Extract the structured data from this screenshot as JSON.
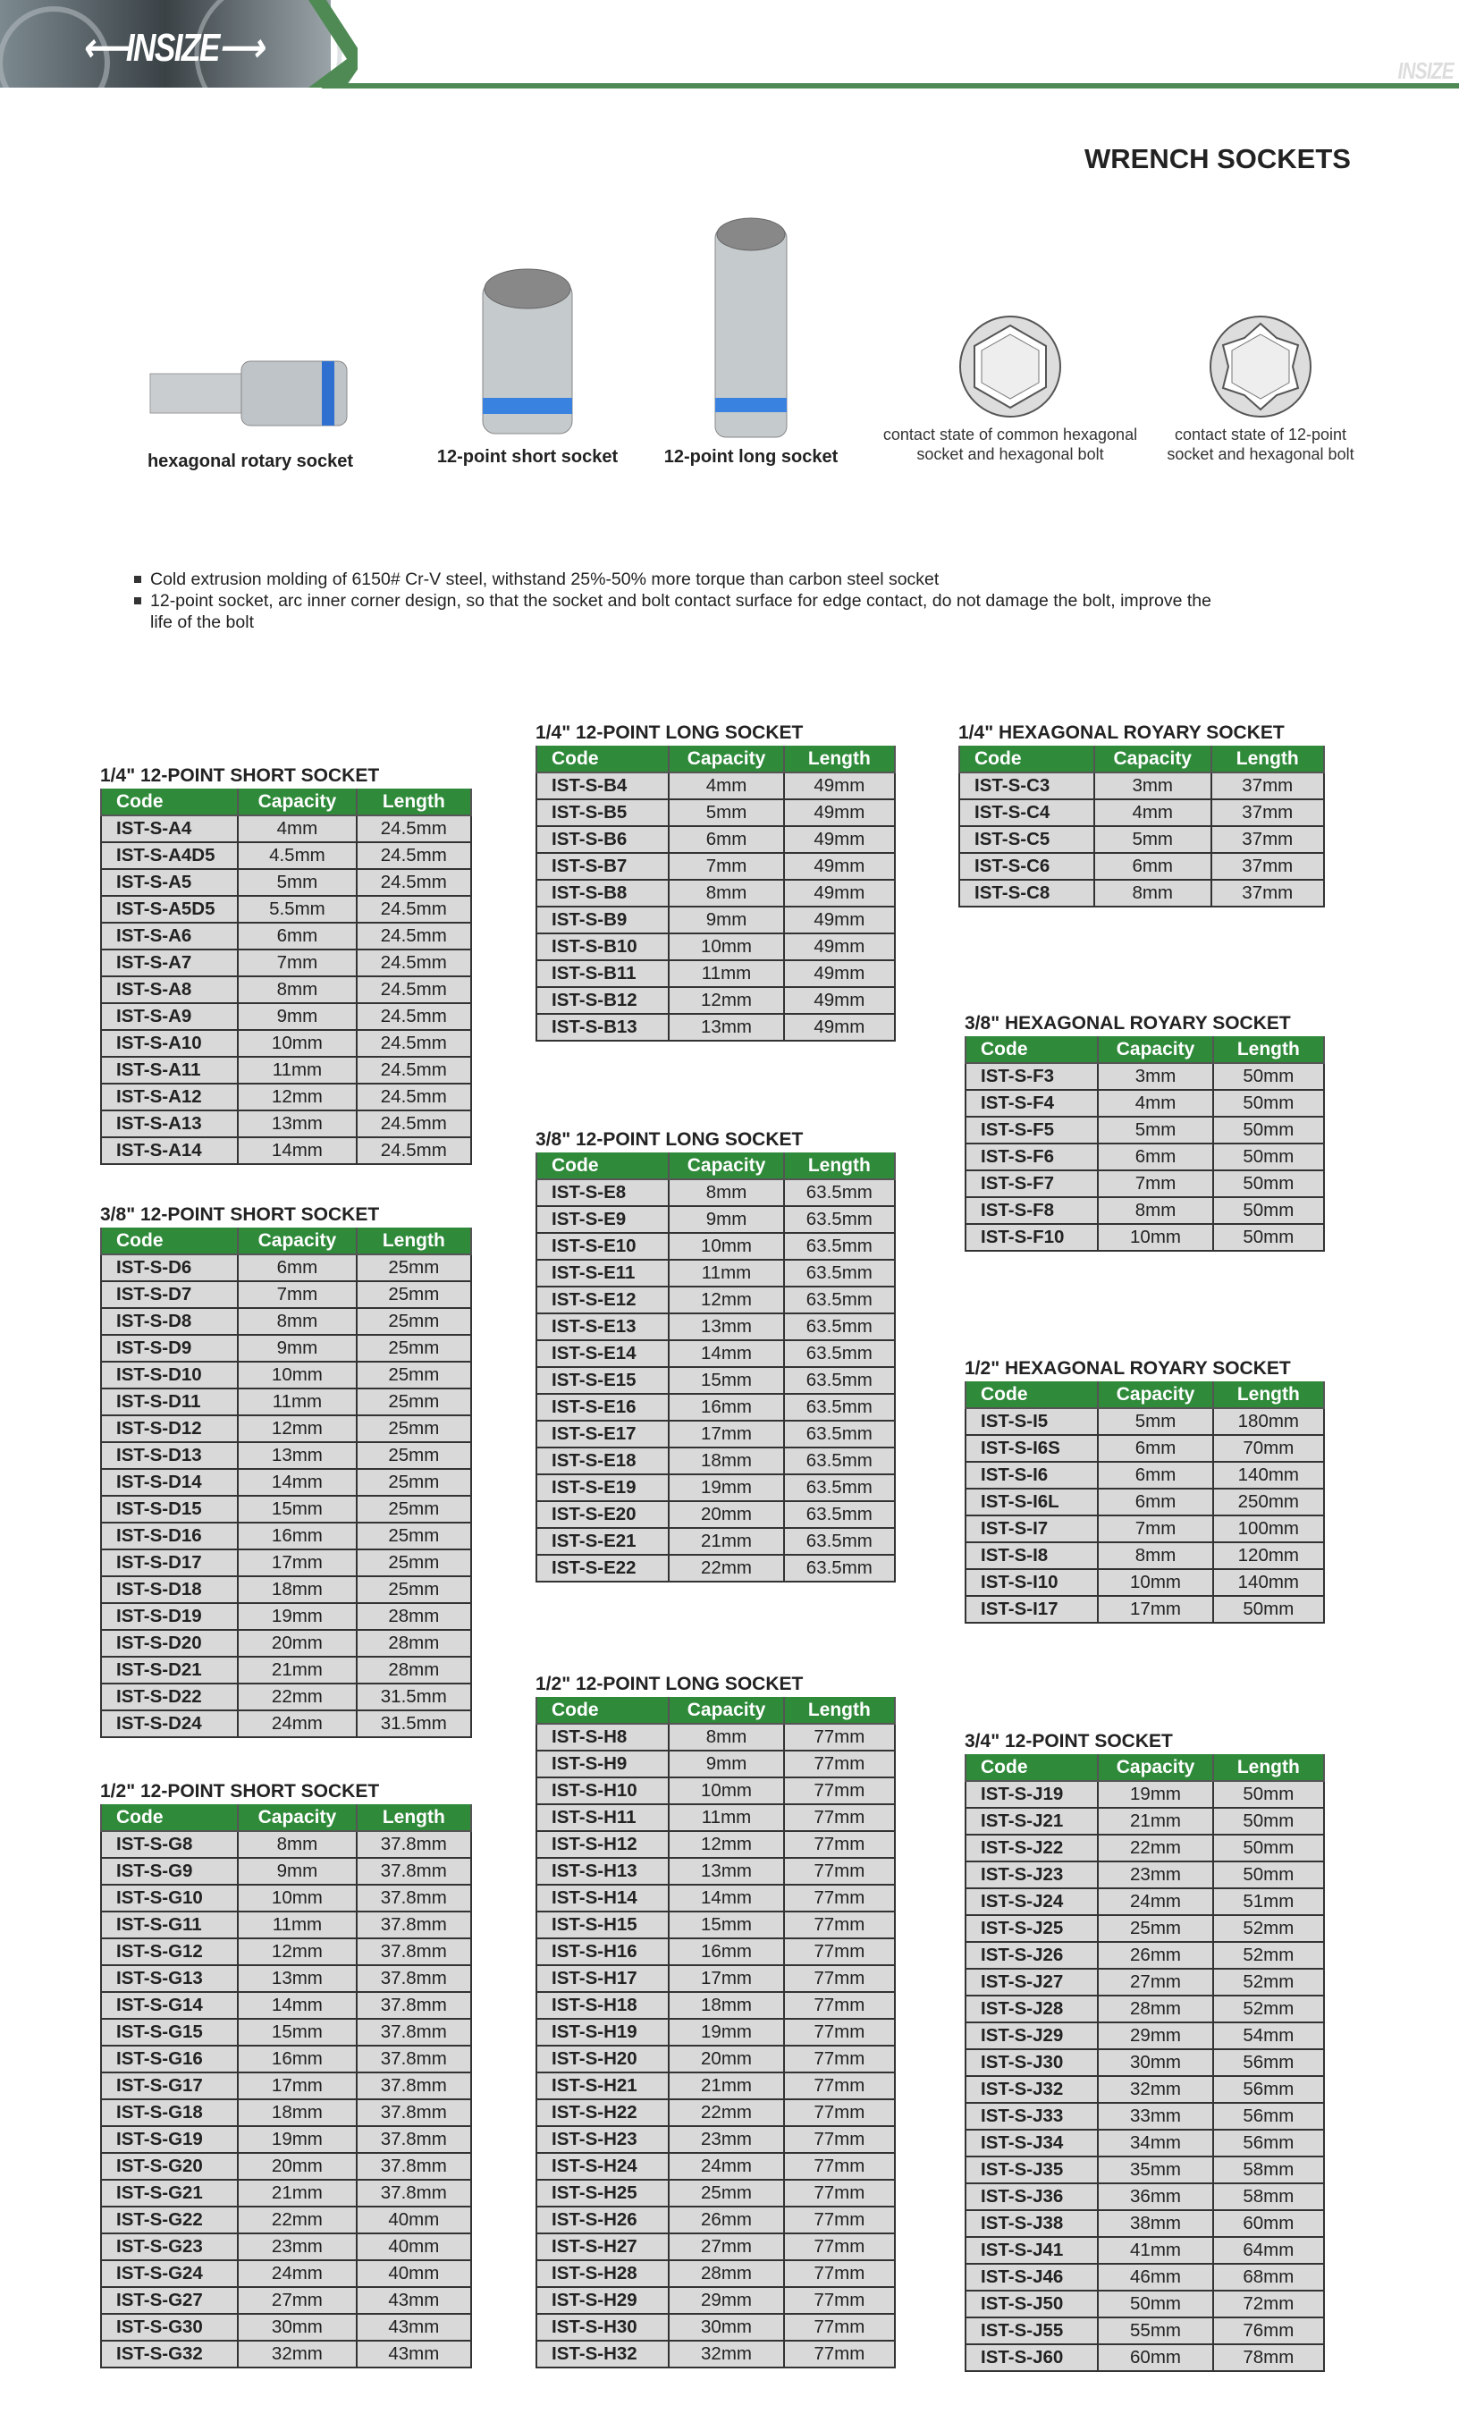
{
  "header": {
    "logo": "INSIZE",
    "title": "WRENCH SOCKETS",
    "brand_color": "#4f8a55",
    "table_header_color": "#2f8a3a",
    "row_color": "#d9d9d9"
  },
  "products": [
    {
      "caption": "hexagonal rotary socket",
      "icon": "hex-bit-socket-image"
    },
    {
      "caption": "12-point short socket",
      "icon": "short-socket-image"
    },
    {
      "caption": "12-point long socket",
      "icon": "long-socket-image"
    },
    {
      "caption": "contact state of common hexagonal socket and hexagonal bolt",
      "icon": "hexagonal-contact-diagram"
    },
    {
      "caption": "contact state of 12-point socket and hexagonal bolt",
      "icon": "12-point-contact-diagram"
    }
  ],
  "features": [
    "Cold extrusion molding of 6150# Cr-V steel, withstand 25%-50% more torque than carbon steel socket",
    "12-point socket, arc inner corner design, so that the socket and bolt contact surface for edge contact, do not damage the bolt, improve the life of the bolt"
  ],
  "columns": [
    "Code",
    "Capacity",
    "Length"
  ],
  "tables": [
    {
      "title": "1/4\" 12-POINT SHORT SOCKET",
      "rows": [
        [
          "IST-S-A4",
          "4mm",
          "24.5mm"
        ],
        [
          "IST-S-A4D5",
          "4.5mm",
          "24.5mm"
        ],
        [
          "IST-S-A5",
          "5mm",
          "24.5mm"
        ],
        [
          "IST-S-A5D5",
          "5.5mm",
          "24.5mm"
        ],
        [
          "IST-S-A6",
          "6mm",
          "24.5mm"
        ],
        [
          "IST-S-A7",
          "7mm",
          "24.5mm"
        ],
        [
          "IST-S-A8",
          "8mm",
          "24.5mm"
        ],
        [
          "IST-S-A9",
          "9mm",
          "24.5mm"
        ],
        [
          "IST-S-A10",
          "10mm",
          "24.5mm"
        ],
        [
          "IST-S-A11",
          "11mm",
          "24.5mm"
        ],
        [
          "IST-S-A12",
          "12mm",
          "24.5mm"
        ],
        [
          "IST-S-A13",
          "13mm",
          "24.5mm"
        ],
        [
          "IST-S-A14",
          "14mm",
          "24.5mm"
        ]
      ]
    },
    {
      "title": "3/8\" 12-POINT SHORT SOCKET",
      "rows": [
        [
          "IST-S-D6",
          "6mm",
          "25mm"
        ],
        [
          "IST-S-D7",
          "7mm",
          "25mm"
        ],
        [
          "IST-S-D8",
          "8mm",
          "25mm"
        ],
        [
          "IST-S-D9",
          "9mm",
          "25mm"
        ],
        [
          "IST-S-D10",
          "10mm",
          "25mm"
        ],
        [
          "IST-S-D11",
          "11mm",
          "25mm"
        ],
        [
          "IST-S-D12",
          "12mm",
          "25mm"
        ],
        [
          "IST-S-D13",
          "13mm",
          "25mm"
        ],
        [
          "IST-S-D14",
          "14mm",
          "25mm"
        ],
        [
          "IST-S-D15",
          "15mm",
          "25mm"
        ],
        [
          "IST-S-D16",
          "16mm",
          "25mm"
        ],
        [
          "IST-S-D17",
          "17mm",
          "25mm"
        ],
        [
          "IST-S-D18",
          "18mm",
          "25mm"
        ],
        [
          "IST-S-D19",
          "19mm",
          "28mm"
        ],
        [
          "IST-S-D20",
          "20mm",
          "28mm"
        ],
        [
          "IST-S-D21",
          "21mm",
          "28mm"
        ],
        [
          "IST-S-D22",
          "22mm",
          "31.5mm"
        ],
        [
          "IST-S-D24",
          "24mm",
          "31.5mm"
        ]
      ]
    },
    {
      "title": "1/2\" 12-POINT SHORT SOCKET",
      "rows": [
        [
          "IST-S-G8",
          "8mm",
          "37.8mm"
        ],
        [
          "IST-S-G9",
          "9mm",
          "37.8mm"
        ],
        [
          "IST-S-G10",
          "10mm",
          "37.8mm"
        ],
        [
          "IST-S-G11",
          "11mm",
          "37.8mm"
        ],
        [
          "IST-S-G12",
          "12mm",
          "37.8mm"
        ],
        [
          "IST-S-G13",
          "13mm",
          "37.8mm"
        ],
        [
          "IST-S-G14",
          "14mm",
          "37.8mm"
        ],
        [
          "IST-S-G15",
          "15mm",
          "37.8mm"
        ],
        [
          "IST-S-G16",
          "16mm",
          "37.8mm"
        ],
        [
          "IST-S-G17",
          "17mm",
          "37.8mm"
        ],
        [
          "IST-S-G18",
          "18mm",
          "37.8mm"
        ],
        [
          "IST-S-G19",
          "19mm",
          "37.8mm"
        ],
        [
          "IST-S-G20",
          "20mm",
          "37.8mm"
        ],
        [
          "IST-S-G21",
          "21mm",
          "37.8mm"
        ],
        [
          "IST-S-G22",
          "22mm",
          "40mm"
        ],
        [
          "IST-S-G23",
          "23mm",
          "40mm"
        ],
        [
          "IST-S-G24",
          "24mm",
          "40mm"
        ],
        [
          "IST-S-G27",
          "27mm",
          "43mm"
        ],
        [
          "IST-S-G30",
          "30mm",
          "43mm"
        ],
        [
          "IST-S-G32",
          "32mm",
          "43mm"
        ]
      ]
    },
    {
      "title": "1/4\" 12-POINT LONG SOCKET",
      "rows": [
        [
          "IST-S-B4",
          "4mm",
          "49mm"
        ],
        [
          "IST-S-B5",
          "5mm",
          "49mm"
        ],
        [
          "IST-S-B6",
          "6mm",
          "49mm"
        ],
        [
          "IST-S-B7",
          "7mm",
          "49mm"
        ],
        [
          "IST-S-B8",
          "8mm",
          "49mm"
        ],
        [
          "IST-S-B9",
          "9mm",
          "49mm"
        ],
        [
          "IST-S-B10",
          "10mm",
          "49mm"
        ],
        [
          "IST-S-B11",
          "11mm",
          "49mm"
        ],
        [
          "IST-S-B12",
          "12mm",
          "49mm"
        ],
        [
          "IST-S-B13",
          "13mm",
          "49mm"
        ]
      ]
    },
    {
      "title": "3/8\" 12-POINT LONG SOCKET",
      "rows": [
        [
          "IST-S-E8",
          "8mm",
          "63.5mm"
        ],
        [
          "IST-S-E9",
          "9mm",
          "63.5mm"
        ],
        [
          "IST-S-E10",
          "10mm",
          "63.5mm"
        ],
        [
          "IST-S-E11",
          "11mm",
          "63.5mm"
        ],
        [
          "IST-S-E12",
          "12mm",
          "63.5mm"
        ],
        [
          "IST-S-E13",
          "13mm",
          "63.5mm"
        ],
        [
          "IST-S-E14",
          "14mm",
          "63.5mm"
        ],
        [
          "IST-S-E15",
          "15mm",
          "63.5mm"
        ],
        [
          "IST-S-E16",
          "16mm",
          "63.5mm"
        ],
        [
          "IST-S-E17",
          "17mm",
          "63.5mm"
        ],
        [
          "IST-S-E18",
          "18mm",
          "63.5mm"
        ],
        [
          "IST-S-E19",
          "19mm",
          "63.5mm"
        ],
        [
          "IST-S-E20",
          "20mm",
          "63.5mm"
        ],
        [
          "IST-S-E21",
          "21mm",
          "63.5mm"
        ],
        [
          "IST-S-E22",
          "22mm",
          "63.5mm"
        ]
      ]
    },
    {
      "title": "1/2\" 12-POINT LONG SOCKET",
      "rows": [
        [
          "IST-S-H8",
          "8mm",
          "77mm"
        ],
        [
          "IST-S-H9",
          "9mm",
          "77mm"
        ],
        [
          "IST-S-H10",
          "10mm",
          "77mm"
        ],
        [
          "IST-S-H11",
          "11mm",
          "77mm"
        ],
        [
          "IST-S-H12",
          "12mm",
          "77mm"
        ],
        [
          "IST-S-H13",
          "13mm",
          "77mm"
        ],
        [
          "IST-S-H14",
          "14mm",
          "77mm"
        ],
        [
          "IST-S-H15",
          "15mm",
          "77mm"
        ],
        [
          "IST-S-H16",
          "16mm",
          "77mm"
        ],
        [
          "IST-S-H17",
          "17mm",
          "77mm"
        ],
        [
          "IST-S-H18",
          "18mm",
          "77mm"
        ],
        [
          "IST-S-H19",
          "19mm",
          "77mm"
        ],
        [
          "IST-S-H20",
          "20mm",
          "77mm"
        ],
        [
          "IST-S-H21",
          "21mm",
          "77mm"
        ],
        [
          "IST-S-H22",
          "22mm",
          "77mm"
        ],
        [
          "IST-S-H23",
          "23mm",
          "77mm"
        ],
        [
          "IST-S-H24",
          "24mm",
          "77mm"
        ],
        [
          "IST-S-H25",
          "25mm",
          "77mm"
        ],
        [
          "IST-S-H26",
          "26mm",
          "77mm"
        ],
        [
          "IST-S-H27",
          "27mm",
          "77mm"
        ],
        [
          "IST-S-H28",
          "28mm",
          "77mm"
        ],
        [
          "IST-S-H29",
          "29mm",
          "77mm"
        ],
        [
          "IST-S-H30",
          "30mm",
          "77mm"
        ],
        [
          "IST-S-H32",
          "32mm",
          "77mm"
        ]
      ]
    },
    {
      "title": "1/4\" HEXAGONAL ROYARY SOCKET",
      "rows": [
        [
          "IST-S-C3",
          "3mm",
          "37mm"
        ],
        [
          "IST-S-C4",
          "4mm",
          "37mm"
        ],
        [
          "IST-S-C5",
          "5mm",
          "37mm"
        ],
        [
          "IST-S-C6",
          "6mm",
          "37mm"
        ],
        [
          "IST-S-C8",
          "8mm",
          "37mm"
        ]
      ]
    },
    {
      "title": "3/8\" HEXAGONAL ROYARY SOCKET",
      "rows": [
        [
          "IST-S-F3",
          "3mm",
          "50mm"
        ],
        [
          "IST-S-F4",
          "4mm",
          "50mm"
        ],
        [
          "IST-S-F5",
          "5mm",
          "50mm"
        ],
        [
          "IST-S-F6",
          "6mm",
          "50mm"
        ],
        [
          "IST-S-F7",
          "7mm",
          "50mm"
        ],
        [
          "IST-S-F8",
          "8mm",
          "50mm"
        ],
        [
          "IST-S-F10",
          "10mm",
          "50mm"
        ]
      ]
    },
    {
      "title": "1/2\" HEXAGONAL ROYARY SOCKET",
      "rows": [
        [
          "IST-S-I5",
          "5mm",
          "180mm"
        ],
        [
          "IST-S-I6S",
          "6mm",
          "70mm"
        ],
        [
          "IST-S-I6",
          "6mm",
          "140mm"
        ],
        [
          "IST-S-I6L",
          "6mm",
          "250mm"
        ],
        [
          "IST-S-I7",
          "7mm",
          "100mm"
        ],
        [
          "IST-S-I8",
          "8mm",
          "120mm"
        ],
        [
          "IST-S-I10",
          "10mm",
          "140mm"
        ],
        [
          "IST-S-I17",
          "17mm",
          "50mm"
        ]
      ]
    },
    {
      "title": "3/4\" 12-POINT SOCKET",
      "rows": [
        [
          "IST-S-J19",
          "19mm",
          "50mm"
        ],
        [
          "IST-S-J21",
          "21mm",
          "50mm"
        ],
        [
          "IST-S-J22",
          "22mm",
          "50mm"
        ],
        [
          "IST-S-J23",
          "23mm",
          "50mm"
        ],
        [
          "IST-S-J24",
          "24mm",
          "51mm"
        ],
        [
          "IST-S-J25",
          "25mm",
          "52mm"
        ],
        [
          "IST-S-J26",
          "26mm",
          "52mm"
        ],
        [
          "IST-S-J27",
          "27mm",
          "52mm"
        ],
        [
          "IST-S-J28",
          "28mm",
          "52mm"
        ],
        [
          "IST-S-J29",
          "29mm",
          "54mm"
        ],
        [
          "IST-S-J30",
          "30mm",
          "56mm"
        ],
        [
          "IST-S-J32",
          "32mm",
          "56mm"
        ],
        [
          "IST-S-J33",
          "33mm",
          "56mm"
        ],
        [
          "IST-S-J34",
          "34mm",
          "56mm"
        ],
        [
          "IST-S-J35",
          "35mm",
          "58mm"
        ],
        [
          "IST-S-J36",
          "36mm",
          "58mm"
        ],
        [
          "IST-S-J38",
          "38mm",
          "60mm"
        ],
        [
          "IST-S-J41",
          "41mm",
          "64mm"
        ],
        [
          "IST-S-J46",
          "46mm",
          "68mm"
        ],
        [
          "IST-S-J50",
          "50mm",
          "72mm"
        ],
        [
          "IST-S-J55",
          "55mm",
          "76mm"
        ],
        [
          "IST-S-J60",
          "60mm",
          "78mm"
        ]
      ]
    }
  ]
}
